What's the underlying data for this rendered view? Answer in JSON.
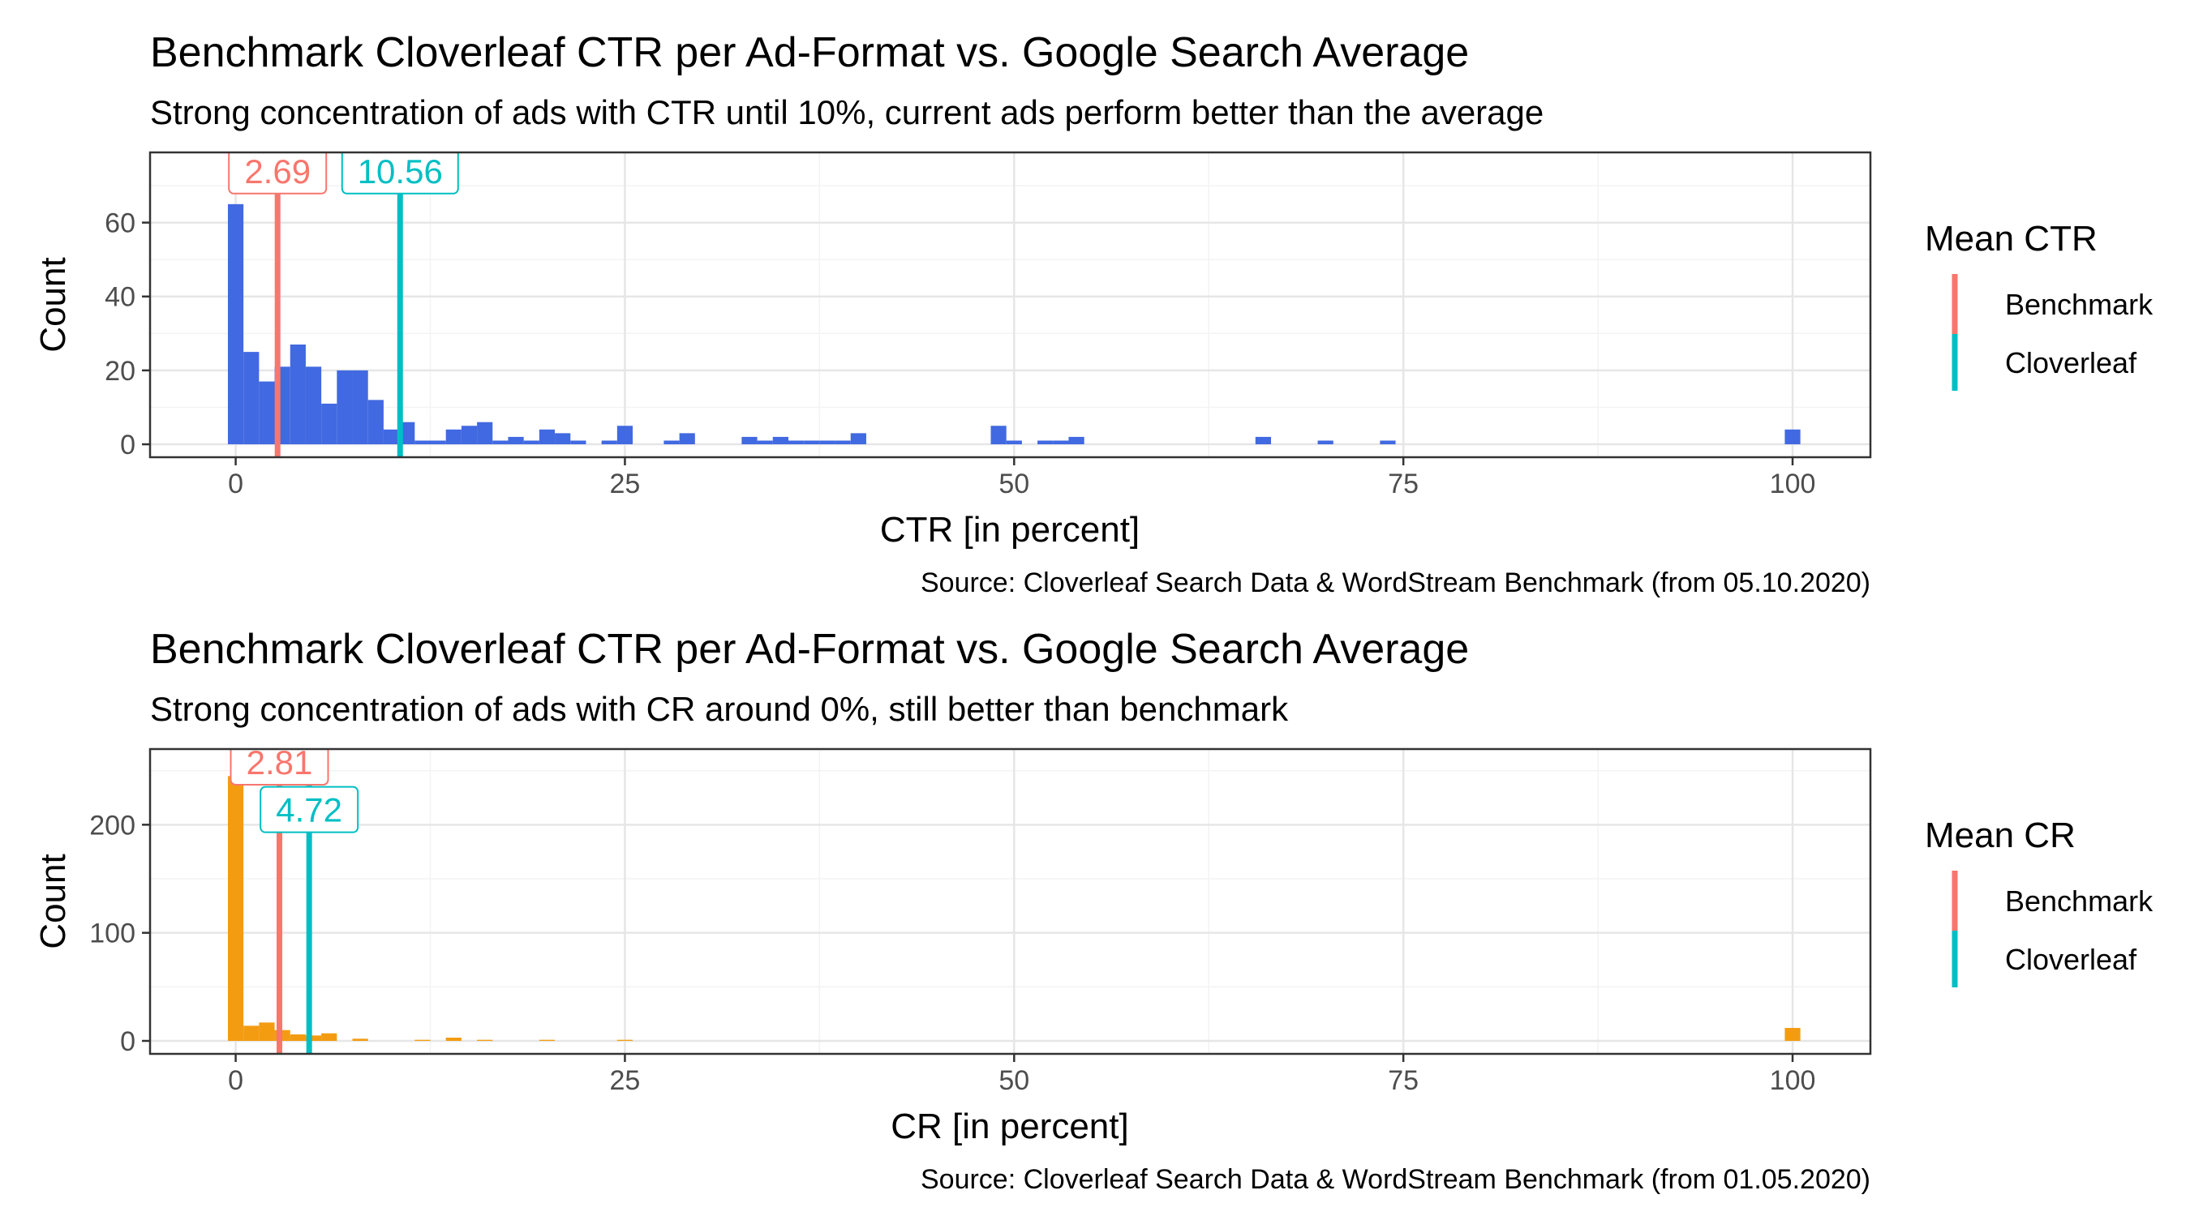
{
  "chart_data": [
    {
      "type": "histogram",
      "title": "Benchmark Cloverleaf CTR per Ad-Format vs. Google Search Average",
      "subtitle": "Strong concentration of ads with CTR until 10%, current ads perform better than the average",
      "xlabel": "CTR [in percent]",
      "ylabel": "Count",
      "caption": "Source: Cloverleaf Search Data & WordStream Benchmark (from 05.10.2020)",
      "xlim": [
        -5.5,
        105
      ],
      "ylim": [
        -3.5,
        79
      ],
      "x_ticks": [
        0,
        25,
        50,
        75,
        100
      ],
      "y_ticks": [
        0,
        20,
        40,
        60
      ],
      "bin_width": 1,
      "bar_color": "#4169E1",
      "bins": [
        {
          "x": 0,
          "count": 65
        },
        {
          "x": 1,
          "count": 25
        },
        {
          "x": 2,
          "count": 17
        },
        {
          "x": 3,
          "count": 21
        },
        {
          "x": 4,
          "count": 27
        },
        {
          "x": 5,
          "count": 21
        },
        {
          "x": 6,
          "count": 11
        },
        {
          "x": 7,
          "count": 20
        },
        {
          "x": 8,
          "count": 20
        },
        {
          "x": 9,
          "count": 12
        },
        {
          "x": 10,
          "count": 4
        },
        {
          "x": 11,
          "count": 6
        },
        {
          "x": 12,
          "count": 1
        },
        {
          "x": 13,
          "count": 1
        },
        {
          "x": 14,
          "count": 4
        },
        {
          "x": 15,
          "count": 5
        },
        {
          "x": 16,
          "count": 6
        },
        {
          "x": 17,
          "count": 1
        },
        {
          "x": 18,
          "count": 2
        },
        {
          "x": 19,
          "count": 1
        },
        {
          "x": 20,
          "count": 4
        },
        {
          "x": 21,
          "count": 3
        },
        {
          "x": 22,
          "count": 1
        },
        {
          "x": 24,
          "count": 1
        },
        {
          "x": 25,
          "count": 5
        },
        {
          "x": 28,
          "count": 1
        },
        {
          "x": 29,
          "count": 3
        },
        {
          "x": 33,
          "count": 2
        },
        {
          "x": 34,
          "count": 1
        },
        {
          "x": 35,
          "count": 2
        },
        {
          "x": 36,
          "count": 1
        },
        {
          "x": 37,
          "count": 1
        },
        {
          "x": 38,
          "count": 1
        },
        {
          "x": 39,
          "count": 1
        },
        {
          "x": 40,
          "count": 3
        },
        {
          "x": 49,
          "count": 5
        },
        {
          "x": 50,
          "count": 1
        },
        {
          "x": 52,
          "count": 1
        },
        {
          "x": 53,
          "count": 1
        },
        {
          "x": 54,
          "count": 2
        },
        {
          "x": 66,
          "count": 2
        },
        {
          "x": 70,
          "count": 1
        },
        {
          "x": 74,
          "count": 1
        },
        {
          "x": 100,
          "count": 4
        }
      ],
      "legend": {
        "title": "Mean CTR",
        "position": "right",
        "items": [
          {
            "name": "Benchmark",
            "color": "#F8766D"
          },
          {
            "name": "Cloverleaf",
            "color": "#00BFC4"
          }
        ]
      },
      "vlines": [
        {
          "series": "Benchmark",
          "x": 2.69,
          "label": "2.69",
          "label_y": 74,
          "color": "#F8766D"
        },
        {
          "series": "Cloverleaf",
          "x": 10.56,
          "label": "10.56",
          "label_y": 74,
          "color": "#00BFC4"
        }
      ]
    },
    {
      "type": "histogram",
      "title": "Benchmark Cloverleaf CTR per Ad-Format vs. Google Search Average",
      "subtitle": "Strong concentration of ads with CR around 0%, still better than benchmark",
      "xlabel": "CR [in percent]",
      "ylabel": "Count",
      "caption": "Source: Cloverleaf Search Data & WordStream Benchmark (from 01.05.2020)",
      "xlim": [
        -5.5,
        105
      ],
      "ylim": [
        -12,
        270
      ],
      "x_ticks": [
        0,
        25,
        50,
        75,
        100
      ],
      "y_ticks": [
        0,
        100,
        200
      ],
      "bin_width": 1,
      "bar_color": "#F39C12",
      "bins": [
        {
          "x": 0,
          "count": 245
        },
        {
          "x": 1,
          "count": 14
        },
        {
          "x": 2,
          "count": 17
        },
        {
          "x": 3,
          "count": 10
        },
        {
          "x": 4,
          "count": 6
        },
        {
          "x": 5,
          "count": 5
        },
        {
          "x": 6,
          "count": 7
        },
        {
          "x": 8,
          "count": 2
        },
        {
          "x": 12,
          "count": 1
        },
        {
          "x": 14,
          "count": 3
        },
        {
          "x": 16,
          "count": 1
        },
        {
          "x": 20,
          "count": 1
        },
        {
          "x": 25,
          "count": 1
        },
        {
          "x": 100,
          "count": 12
        }
      ],
      "legend": {
        "title": "Mean CR",
        "position": "right",
        "items": [
          {
            "name": "Benchmark",
            "color": "#F8766D"
          },
          {
            "name": "Cloverleaf",
            "color": "#00BFC4"
          }
        ]
      },
      "vlines": [
        {
          "series": "Benchmark",
          "x": 2.81,
          "label": "2.81",
          "label_y": 258,
          "color": "#F8766D"
        },
        {
          "series": "Cloverleaf",
          "x": 4.72,
          "label": "4.72",
          "label_y": 214,
          "color": "#00BFC4"
        }
      ]
    }
  ]
}
